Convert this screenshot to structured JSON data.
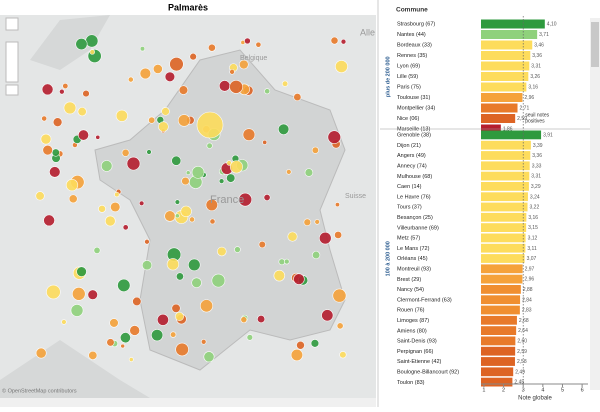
{
  "title": "Palmarès",
  "map": {
    "labels": [
      "France",
      "Belgique",
      "Suisse",
      "Alle"
    ],
    "attribution": "© OpenStreetMap contributors"
  },
  "chart_data": {
    "type": "bar",
    "orientation": "horizontal",
    "header": "Commune",
    "xlabel": "Note globale",
    "xlim": [
      0.85,
      6.3
    ],
    "xticks": [
      1,
      2,
      3,
      4,
      5,
      6
    ],
    "reference_line": 3,
    "annotation": [
      "seuil notes",
      "positives"
    ],
    "groups": [
      {
        "name": "plus de 200 000",
        "categories": [
          "Strasbourg (67)",
          "Nantes (44)",
          "Bordeaux (33)",
          "Rennes (35)",
          "Lyon (69)",
          "Lille (59)",
          "Paris (75)",
          "Toulouse (31)",
          "Montpellier (34)",
          "Nice (06)",
          "Marseille (13)"
        ],
        "values": [
          4.1,
          3.71,
          3.46,
          3.36,
          3.31,
          3.26,
          3.16,
          2.96,
          2.71,
          2.59,
          1.86
        ],
        "value_labels": [
          "4,10",
          "3,71",
          "3,46",
          "3,36",
          "3,31",
          "3,26",
          "3,16",
          "2,96",
          "2,71",
          "2,59",
          "1,86"
        ],
        "colors": [
          "#2e9a3e",
          "#8fd17c",
          "#fddc5c",
          "#fddc5c",
          "#fddc5c",
          "#fddc5c",
          "#fddc5c",
          "#f5a23a",
          "#e87a2a",
          "#dd6424",
          "#b51d2e"
        ]
      },
      {
        "name": "100 à 200 000",
        "categories": [
          "Grenoble (38)",
          "Dijon (21)",
          "Angers (49)",
          "Annecy (74)",
          "Mulhouse (68)",
          "Caen (14)",
          "Le Havre (76)",
          "Tours (37)",
          "Besançon (25)",
          "Villeurbanne (69)",
          "Metz (57)",
          "Le Mans (72)",
          "Orléans (45)",
          "Montreuil (93)",
          "Brest (29)",
          "Nancy (54)",
          "Clermont-Ferrand (63)",
          "Rouen (76)",
          "Limoges (87)",
          "Amiens (80)",
          "Saint-Denis (93)",
          "Perpignan (66)",
          "Saint-Etienne (42)",
          "Boulogne-Billancourt (92)",
          "Toulon (83)"
        ],
        "values": [
          3.91,
          3.39,
          3.36,
          3.33,
          3.31,
          3.29,
          3.24,
          3.22,
          3.16,
          3.15,
          3.12,
          3.11,
          3.07,
          2.97,
          2.96,
          2.88,
          2.84,
          2.83,
          2.68,
          2.64,
          2.6,
          2.59,
          2.58,
          2.49,
          2.45
        ],
        "value_labels": [
          "3,91",
          "3,39",
          "3,36",
          "3,33",
          "3,31",
          "3,29",
          "3,24",
          "3,22",
          "3,16",
          "3,15",
          "3,12",
          "3,11",
          "3,07",
          "2,97",
          "2,96",
          "2,88",
          "2,84",
          "2,83",
          "2,68",
          "2,64",
          "2,60",
          "2,59",
          "2,58",
          "2,49",
          "2,45"
        ],
        "colors": [
          "#2e9a3e",
          "#fddc5c",
          "#fddc5c",
          "#fddc5c",
          "#fddc5c",
          "#fddc5c",
          "#fddc5c",
          "#fddc5c",
          "#fddc5c",
          "#fddc5c",
          "#fddc5c",
          "#fddc5c",
          "#fddc5c",
          "#f5a23a",
          "#f5a23a",
          "#f08f30",
          "#f08f30",
          "#f08f30",
          "#e87a2a",
          "#e87a2a",
          "#e87a2a",
          "#dd6424",
          "#dd6424",
          "#dd6424",
          "#dd6424"
        ]
      }
    ]
  }
}
